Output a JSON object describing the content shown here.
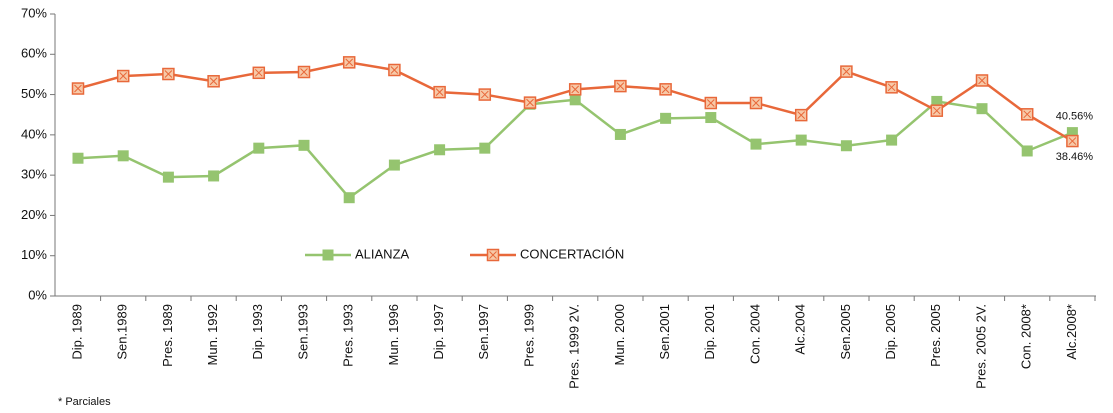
{
  "chart_data": {
    "type": "line",
    "categories": [
      "Dip. 1989",
      "Sen.1989",
      "Pres. 1989",
      "Mun. 1992",
      "Dip. 1993",
      "Sen.1993",
      "Pres. 1993",
      "Mun. 1996",
      "Dip. 1997",
      "Sen.1997",
      "Pres. 1999",
      "Pres. 1999 2V.",
      "Mun. 2000",
      "Sen.2001",
      "Dip. 2001",
      "Con. 2004",
      "Alc.2004",
      "Sen.2005",
      "Dip. 2005",
      "Pres. 2005",
      "Pres. 2005 2V.",
      "Con. 2008*",
      "Alc.2008*"
    ],
    "series": [
      {
        "name": "ALIANZA",
        "color": "#95c46f",
        "marker": "square",
        "values": [
          34.2,
          34.8,
          29.5,
          29.8,
          36.7,
          37.4,
          24.4,
          32.5,
          36.3,
          36.7,
          47.6,
          48.7,
          40.1,
          44.1,
          44.3,
          37.7,
          38.7,
          37.3,
          38.7,
          48.3,
          46.5,
          36.0,
          40.56
        ],
        "value_labels": [
          null,
          null,
          null,
          null,
          null,
          null,
          null,
          null,
          null,
          null,
          null,
          null,
          null,
          null,
          null,
          null,
          null,
          null,
          null,
          null,
          null,
          null,
          "40.56%"
        ]
      },
      {
        "name": "CONCERTACIÓN",
        "color": "#e8683a",
        "marker": "square-x",
        "values": [
          51.5,
          54.6,
          55.1,
          53.3,
          55.4,
          55.6,
          58.0,
          56.1,
          50.6,
          50.0,
          48.0,
          51.3,
          52.1,
          51.3,
          47.9,
          47.9,
          44.9,
          55.7,
          51.8,
          46.0,
          53.5,
          45.1,
          38.46
        ],
        "value_labels": [
          null,
          null,
          null,
          null,
          null,
          null,
          null,
          null,
          null,
          null,
          null,
          null,
          null,
          null,
          null,
          null,
          null,
          null,
          null,
          null,
          null,
          null,
          "38.46%"
        ]
      }
    ],
    "ylim": [
      0,
      70
    ],
    "yticks": [
      {
        "value": 0,
        "label": "0%"
      },
      {
        "value": 10,
        "label": "10%"
      },
      {
        "value": 20,
        "label": "20%"
      },
      {
        "value": 30,
        "label": "30%"
      },
      {
        "value": 40,
        "label": "40%"
      },
      {
        "value": 50,
        "label": "50%"
      },
      {
        "value": 60,
        "label": "60%"
      },
      {
        "value": 70,
        "label": "70%"
      }
    ],
    "grid": false,
    "legend": "center",
    "footnote": "* Parciales"
  }
}
